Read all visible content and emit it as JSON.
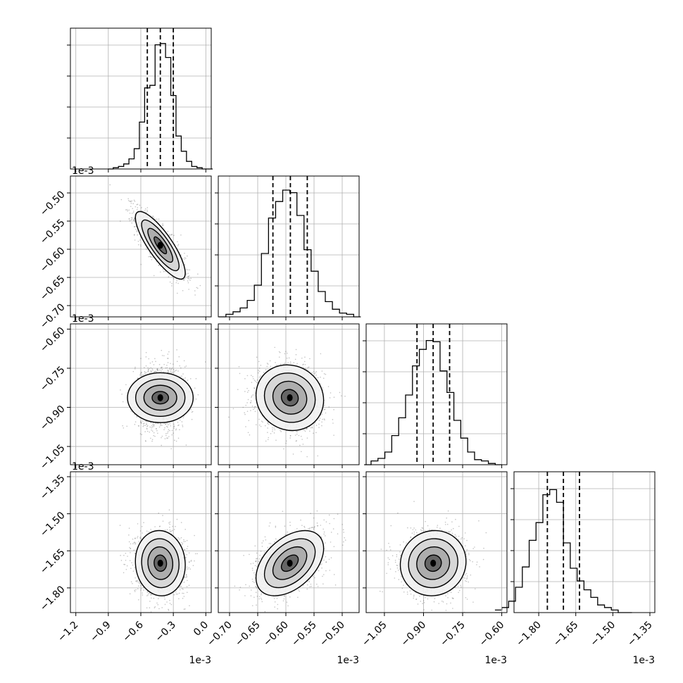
{
  "chart_data": {
    "type": "corner",
    "parameters": [
      {
        "range": [
          -1.25,
          0.05
        ],
        "ticks": [
          -1.2,
          -0.9,
          -0.6,
          -0.3,
          0.0
        ],
        "tick_labels": [
          "−1.2",
          "−0.9",
          "−0.6",
          "−0.3",
          "0.0"
        ],
        "scale_label": "1e-3",
        "mean": -0.42,
        "sd": 0.115,
        "quantiles": [
          -0.54,
          -0.42,
          -0.3
        ],
        "hist_values": [
          0.0,
          0.01,
          0.02,
          0.04,
          0.08,
          0.16,
          0.37,
          0.64,
          0.66,
          0.98,
          0.99,
          0.88,
          0.58,
          0.26,
          0.14,
          0.06,
          0.02,
          0.01,
          0.0,
          0.0
        ]
      },
      {
        "range": [
          -0.72,
          -0.47
        ],
        "ticks": [
          -0.7,
          -0.65,
          -0.6,
          -0.55,
          -0.5
        ],
        "tick_labels": [
          "−0.70",
          "−0.65",
          "−0.60",
          "−0.55",
          "−0.50"
        ],
        "scale_label": "1e-3",
        "mean": -0.593,
        "sd": 0.03,
        "quantiles": [
          -0.623,
          -0.592,
          -0.562
        ],
        "hist_values": [
          0.0,
          0.02,
          0.04,
          0.07,
          0.13,
          0.25,
          0.5,
          0.78,
          0.91,
          1.0,
          0.98,
          0.8,
          0.53,
          0.36,
          0.2,
          0.12,
          0.06,
          0.03,
          0.02,
          0.0
        ]
      },
      {
        "range": [
          -1.12,
          -0.58
        ],
        "ticks": [
          -1.05,
          -0.9,
          -0.75,
          -0.6
        ],
        "tick_labels": [
          "−1.05",
          "−0.90",
          "−0.75",
          "−0.60"
        ],
        "scale_label": "1e-3",
        "mean": -0.863,
        "sd": 0.063,
        "quantiles": [
          -0.925,
          -0.863,
          -0.8
        ],
        "hist_values": [
          0.0,
          0.03,
          0.05,
          0.1,
          0.23,
          0.37,
          0.55,
          0.78,
          0.91,
          0.98,
          0.97,
          0.74,
          0.57,
          0.35,
          0.21,
          0.1,
          0.04,
          0.03,
          0.01,
          0.0
        ]
      },
      {
        "range": [
          -1.9,
          -1.33
        ],
        "ticks": [
          -1.8,
          -1.65,
          -1.5,
          -1.35
        ],
        "tick_labels": [
          "−1.80",
          "−1.65",
          "−1.50",
          "−1.35"
        ],
        "scale_label": "1e-3",
        "mean": -1.7,
        "sd": 0.066,
        "quantiles": [
          -1.765,
          -1.7,
          -1.635
        ],
        "hist_values": [
          0.02,
          0.04,
          0.09,
          0.2,
          0.36,
          0.57,
          0.71,
          0.93,
          0.97,
          0.87,
          0.55,
          0.35,
          0.25,
          0.18,
          0.12,
          0.06,
          0.04,
          0.02,
          0.0,
          0.0
        ]
      }
    ],
    "correlations": [
      [
        1.0,
        -0.82,
        0.0,
        -0.05
      ],
      [
        -0.82,
        1.0,
        -0.08,
        0.45
      ],
      [
        0.0,
        -0.08,
        1.0,
        0.05
      ],
      [
        -0.05,
        0.45,
        0.05,
        1.0
      ]
    ],
    "contour_levels_sigma": [
      0.5,
      1.0,
      1.5,
      2.0
    ],
    "quantile_probabilities": [
      0.16,
      0.5,
      0.84
    ],
    "grid": true,
    "line_color": "#000000",
    "scatter_color": "#555555",
    "grid_color": "#b0b0b0",
    "tick_label_rotation_deg": 45
  }
}
